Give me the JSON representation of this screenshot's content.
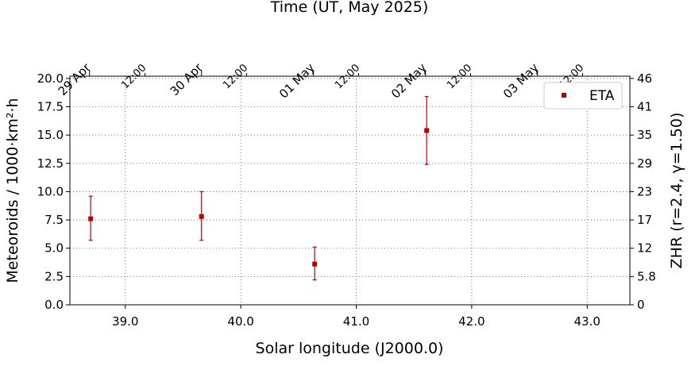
{
  "chart_data": {
    "type": "scatter",
    "xlabel": "Solar longitude (J2000.0)",
    "ylabel": "Meteoroids / 1000·km²·h",
    "ylabel_right": "ZHR (r=2.4, γ=1.50)",
    "xlabel_top": "Time (UT, May 2025)",
    "xlim": [
      38.52,
      43.37
    ],
    "ylim": [
      0,
      20.2
    ],
    "x_ticks": [
      39.0,
      40.0,
      41.0,
      42.0,
      43.0
    ],
    "x_tick_labels": [
      "39.0",
      "40.0",
      "41.0",
      "42.0",
      "43.0"
    ],
    "y_ticks": [
      0,
      2.5,
      5.0,
      7.5,
      10.0,
      12.5,
      15.0,
      17.5,
      20.0
    ],
    "y_tick_labels": [
      "0.0",
      "2.5",
      "5.0",
      "7.5",
      "10.0",
      "12.5",
      "15.0",
      "17.5",
      "20.0"
    ],
    "right_ticks": [
      {
        "y": 0,
        "label": "0"
      },
      {
        "y": 2.5,
        "label": "5.8"
      },
      {
        "y": 5.0,
        "label": "12"
      },
      {
        "y": 7.5,
        "label": "17"
      },
      {
        "y": 10.0,
        "label": "23"
      },
      {
        "y": 12.5,
        "label": "29"
      },
      {
        "y": 15.0,
        "label": "35"
      },
      {
        "y": 17.5,
        "label": "41"
      },
      {
        "y": 20.0,
        "label": "46"
      }
    ],
    "top_ticks": [
      {
        "x": 38.69,
        "label": "29 Apr",
        "major": true
      },
      {
        "x": 39.17,
        "label": "12:00",
        "major": false
      },
      {
        "x": 39.66,
        "label": "30 Apr",
        "major": true
      },
      {
        "x": 40.05,
        "label": "12:00",
        "major": false
      },
      {
        "x": 40.63,
        "label": "01 May",
        "major": true
      },
      {
        "x": 41.02,
        "label": "12:00",
        "major": false
      },
      {
        "x": 41.6,
        "label": "02 May",
        "major": true
      },
      {
        "x": 41.99,
        "label": "12:00",
        "major": false
      },
      {
        "x": 42.57,
        "label": "03 May",
        "major": true
      },
      {
        "x": 42.96,
        "label": "12:00",
        "major": false
      }
    ],
    "grid": true,
    "legend_position": "top-right",
    "series": [
      {
        "name": "ETA",
        "color": "#c00000",
        "points": [
          {
            "x": 38.7,
            "y": 7.6,
            "err_low": 5.7,
            "err_high": 9.6
          },
          {
            "x": 39.66,
            "y": 7.8,
            "err_low": 5.7,
            "err_high": 10.0
          },
          {
            "x": 40.64,
            "y": 3.6,
            "err_low": 2.2,
            "err_high": 5.1
          },
          {
            "x": 41.61,
            "y": 15.4,
            "err_low": 12.4,
            "err_high": 18.4
          }
        ]
      }
    ]
  }
}
